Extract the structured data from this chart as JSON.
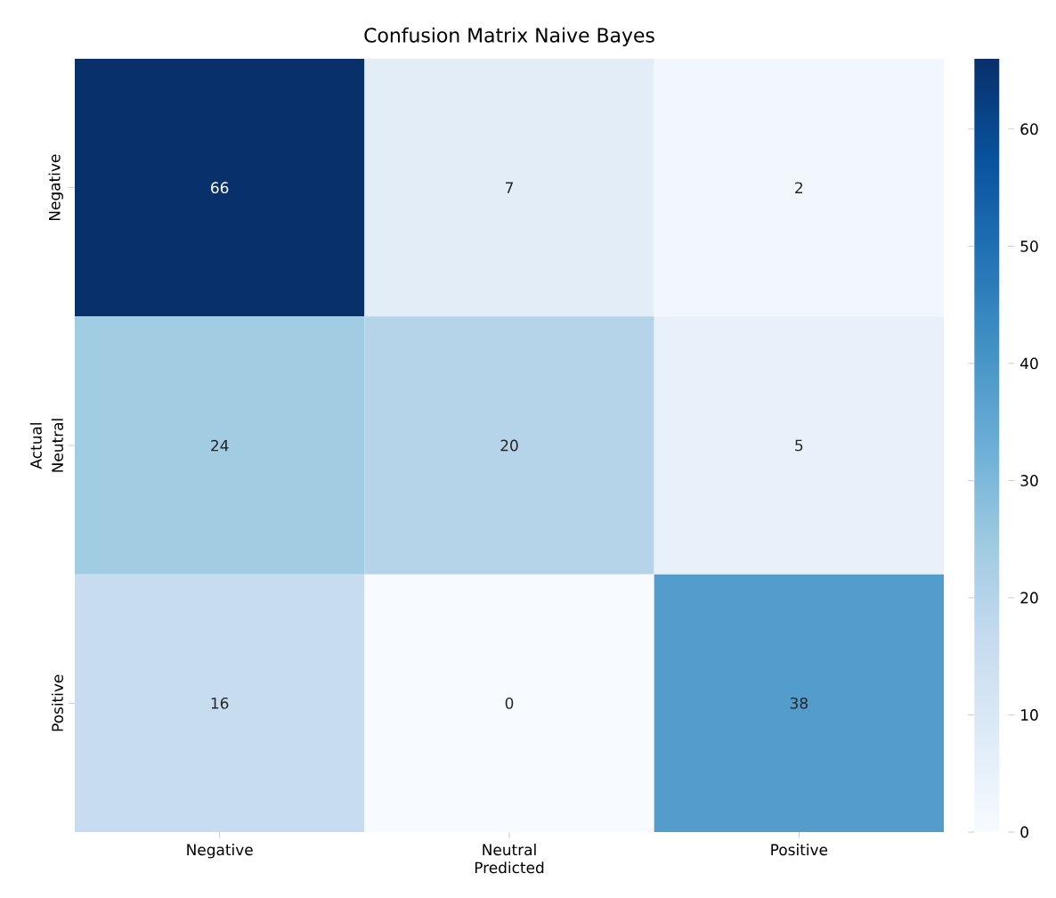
{
  "chart_data": {
    "type": "heatmap",
    "title": "Confusion Matrix Naive Bayes",
    "xlabel": "Predicted",
    "ylabel": "Actual",
    "categories": [
      "Negative",
      "Neutral",
      "Positive"
    ],
    "y_categories": [
      "Negative",
      "Neutral",
      "Positive"
    ],
    "cells": [
      [
        66,
        7,
        2
      ],
      [
        24,
        20,
        5
      ],
      [
        16,
        0,
        38
      ]
    ],
    "clim": [
      0,
      66
    ],
    "cticks": [
      0,
      10,
      20,
      30,
      40,
      50,
      60
    ],
    "data_labels": true
  }
}
